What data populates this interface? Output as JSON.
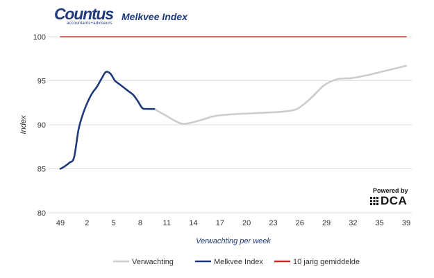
{
  "brand": {
    "name": "Countus",
    "tagline": "accountants+adviseurs",
    "powered_by": "Powered by",
    "partner": "DCA"
  },
  "chart_data": {
    "type": "line",
    "title": "Melkvee Index",
    "xlabel": "Verwachting per week",
    "ylabel": "Index",
    "ylim": [
      80,
      100
    ],
    "yticks": [
      80,
      85,
      90,
      95,
      100
    ],
    "xrange": [
      0,
      38
    ],
    "x_tick_labels": [
      "49",
      "2",
      "5",
      "8",
      "11",
      "14",
      "17",
      "20",
      "23",
      "26",
      "29",
      "32",
      "35",
      "39"
    ],
    "grid": true,
    "legend_position": "bottom",
    "colors": {
      "Verwachting": "#cccccc",
      "Melkvee Index": "#1f3a7a",
      "10 jarig gemiddelde": "#c0302a"
    },
    "series": [
      {
        "name": "Verwachting",
        "color": "#cccccc",
        "x": [
          10.3,
          11.5,
          12.5,
          13.5,
          15,
          17,
          19,
          21,
          23,
          24.5,
          26,
          27.5,
          29,
          30.5,
          32,
          34,
          36,
          38
        ],
        "y": [
          91.8,
          91.1,
          90.5,
          90.1,
          90.4,
          91.0,
          91.2,
          91.3,
          91.4,
          91.5,
          91.8,
          93.0,
          94.5,
          95.2,
          95.3,
          95.7,
          96.2,
          96.7
        ]
      },
      {
        "name": "Melkvee Index",
        "color": "#1f3a7a",
        "x": [
          0,
          0.5,
          1,
          1.5,
          2,
          2.5,
          3,
          3.5,
          4,
          4.5,
          5,
          5.5,
          6,
          6.5,
          7,
          7.5,
          8,
          8.5,
          9,
          9.5,
          10.3
        ],
        "y": [
          85.0,
          85.3,
          85.7,
          86.3,
          89.5,
          91.3,
          92.6,
          93.6,
          94.3,
          95.2,
          96.0,
          95.8,
          95.0,
          94.6,
          94.2,
          93.8,
          93.4,
          92.7,
          91.9,
          91.8,
          91.8
        ]
      },
      {
        "name": "10 jarig gemiddelde",
        "color": "#c0302a",
        "x": [
          0,
          38
        ],
        "y": [
          100,
          100
        ]
      }
    ]
  }
}
